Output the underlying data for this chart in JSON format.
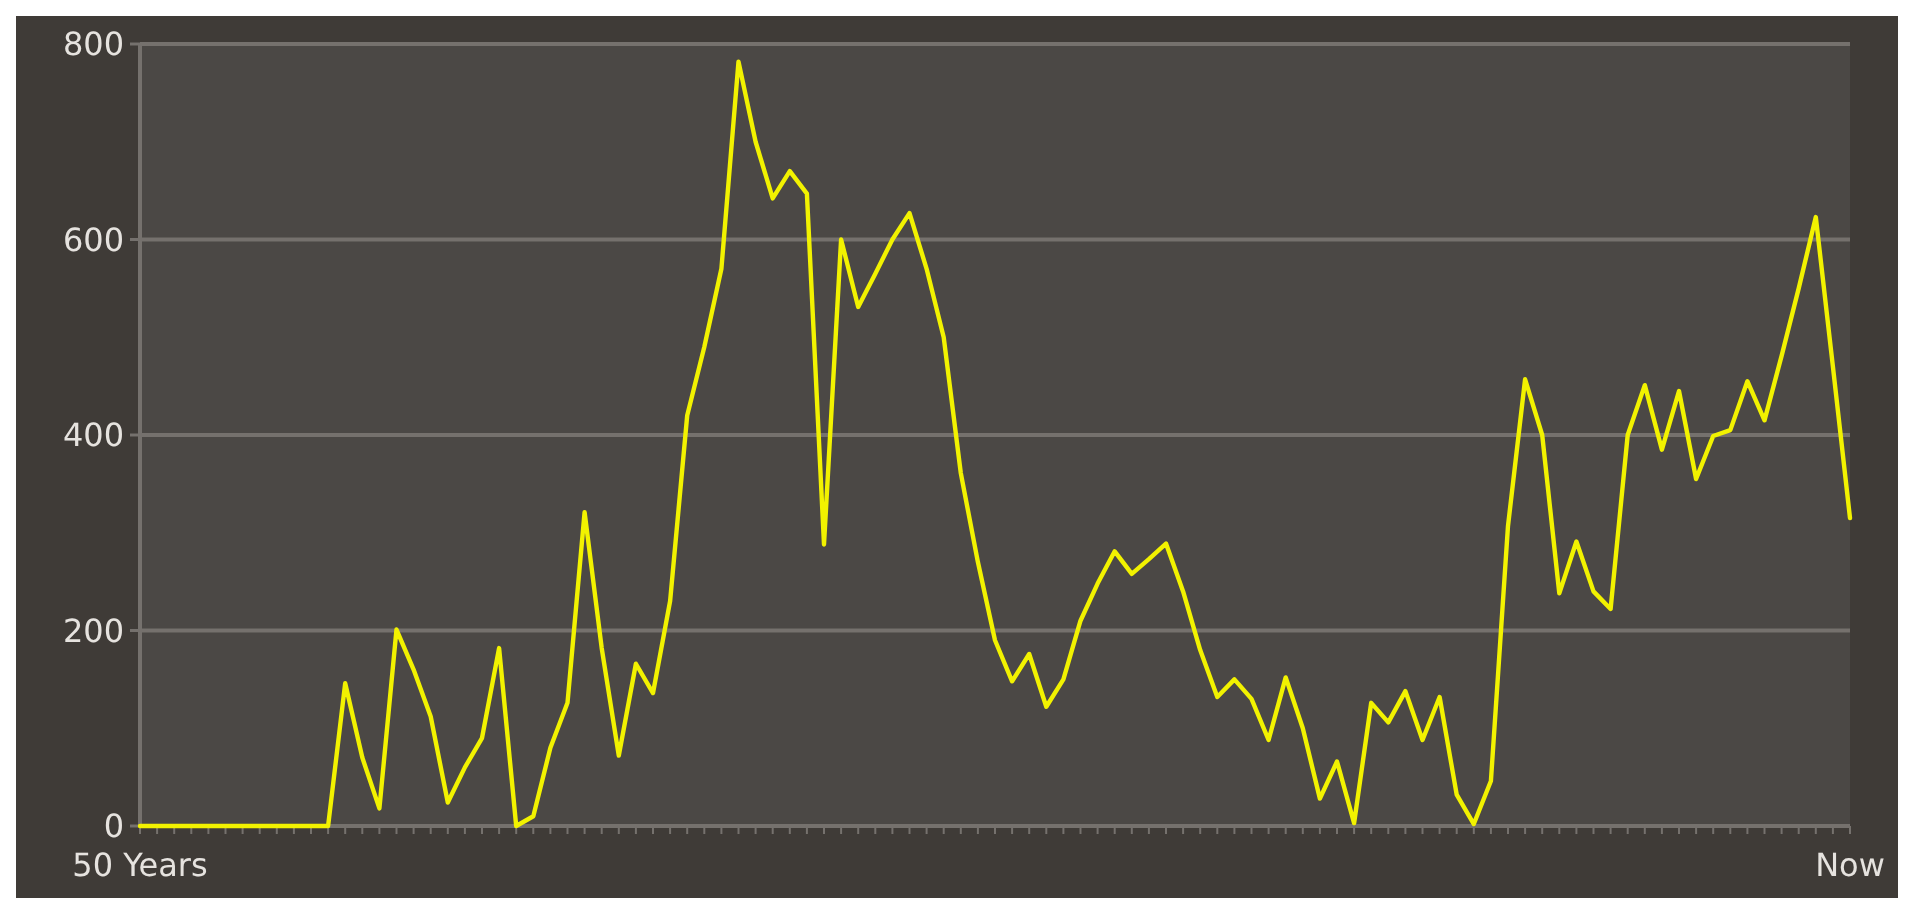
{
  "chart_data": {
    "type": "line",
    "color": "#f2f200",
    "grid": "y",
    "marker": "none",
    "line_style": "solid",
    "categories": [
      "50 Years",
      null,
      null,
      null,
      null,
      null,
      null,
      null,
      null,
      null,
      null,
      null,
      null,
      null,
      null,
      null,
      null,
      null,
      null,
      null,
      null,
      null,
      null,
      null,
      null,
      null,
      null,
      null,
      null,
      null,
      null,
      null,
      null,
      null,
      null,
      null,
      null,
      null,
      null,
      null,
      null,
      null,
      null,
      null,
      null,
      null,
      null,
      null,
      null,
      null,
      null,
      null,
      null,
      null,
      null,
      null,
      null,
      null,
      null,
      null,
      null,
      null,
      null,
      null,
      null,
      null,
      null,
      null,
      null,
      null,
      null,
      null,
      null,
      null,
      null,
      null,
      null,
      null,
      null,
      null,
      null,
      null,
      null,
      null,
      null,
      null,
      null,
      null,
      null,
      null,
      null,
      null,
      null,
      null,
      null,
      null,
      null,
      null,
      null,
      null,
      "Now"
    ],
    "values": [
      0,
      0,
      0,
      0,
      0,
      0,
      0,
      0,
      0,
      0,
      0,
      0,
      146,
      70,
      18,
      201,
      160,
      112,
      24,
      60,
      90,
      182,
      0,
      10,
      80,
      126,
      321,
      182,
      72,
      166,
      136,
      230,
      420,
      490,
      570,
      782,
      700,
      642,
      670,
      647,
      288,
      600,
      531,
      565,
      600,
      627,
      570,
      500,
      361,
      270,
      190,
      148,
      176,
      122,
      150,
      210,
      248,
      281,
      258,
      273,
      289,
      240,
      180,
      132,
      150,
      130,
      88,
      152,
      100,
      28,
      66,
      3,
      126,
      106,
      138,
      88,
      132,
      32,
      2,
      46,
      307,
      457,
      400,
      238,
      291,
      240,
      222,
      400,
      451,
      385,
      445,
      355,
      399,
      405,
      455,
      415,
      481,
      550,
      623,
      470,
      315
    ],
    "ylim": [
      0,
      800
    ],
    "yticks": [
      0,
      200,
      400,
      600,
      800
    ]
  }
}
